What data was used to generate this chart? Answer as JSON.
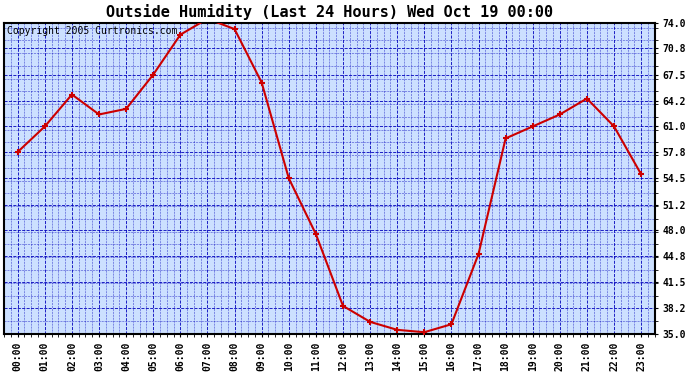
{
  "title": "Outside Humidity (Last 24 Hours) Wed Oct 19 00:00",
  "copyright": "Copyright 2005 Curtronics.com",
  "hours": [
    "00:00",
    "01:00",
    "02:00",
    "03:00",
    "04:00",
    "05:00",
    "06:00",
    "07:00",
    "08:00",
    "09:00",
    "10:00",
    "11:00",
    "12:00",
    "13:00",
    "14:00",
    "15:00",
    "16:00",
    "17:00",
    "18:00",
    "19:00",
    "20:00",
    "21:00",
    "22:00",
    "23:00"
  ],
  "values": [
    57.8,
    61.0,
    65.0,
    62.5,
    63.2,
    67.5,
    72.5,
    74.5,
    73.2,
    66.5,
    54.5,
    47.5,
    38.5,
    36.5,
    35.5,
    35.2,
    36.2,
    45.0,
    59.5,
    61.0,
    62.5,
    64.5,
    61.0,
    55.0
  ],
  "yticks": [
    35.0,
    38.2,
    41.5,
    44.8,
    48.0,
    51.2,
    54.5,
    57.8,
    61.0,
    64.2,
    67.5,
    70.8,
    74.0
  ],
  "ymin": 35.0,
  "ymax": 74.0,
  "line_color": "#cc0000",
  "marker_color": "#cc0000",
  "bg_color": "#ffffff",
  "plot_bg_color": "#cce0ff",
  "grid_color": "#0000bb",
  "border_color": "#000000",
  "title_fontsize": 11,
  "copyright_fontsize": 7
}
